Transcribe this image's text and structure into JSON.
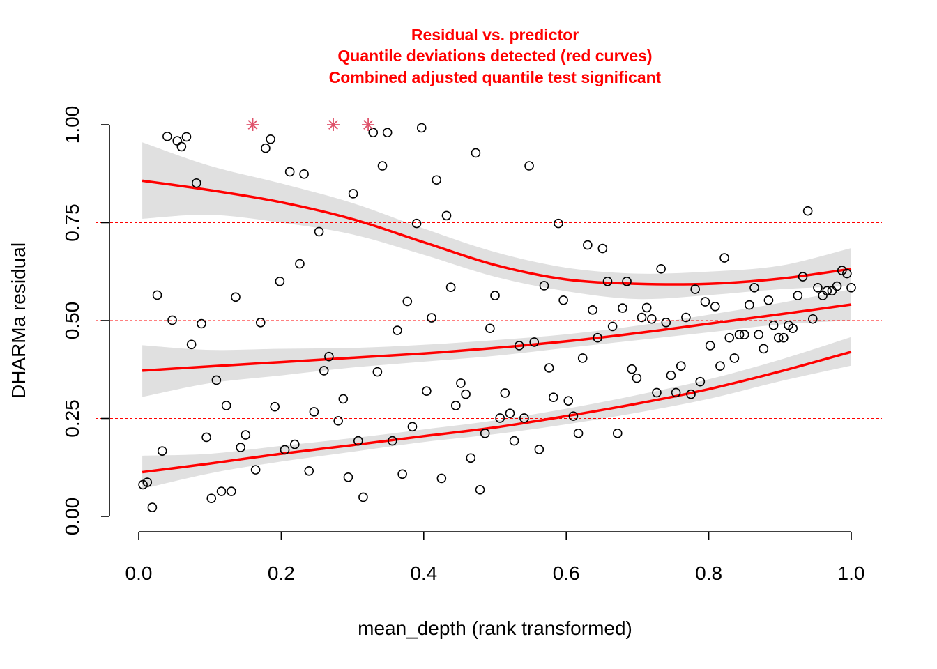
{
  "chart_data": {
    "type": "scatter",
    "title": [
      "Residual vs. predictor",
      "Quantile deviations detected (red curves)",
      "Combined adjusted quantile test significant"
    ],
    "xlabel": "mean_depth (rank transformed)",
    "ylabel": "DHARMa residual",
    "xlim": [
      0,
      1
    ],
    "ylim": [
      0,
      1
    ],
    "x_ticks": [
      0.0,
      0.2,
      0.4,
      0.6,
      0.8,
      1.0
    ],
    "x_tick_labels": [
      "0.0",
      "0.2",
      "0.4",
      "0.6",
      "0.8",
      "1.0"
    ],
    "y_ticks": [
      0.0,
      0.25,
      0.5,
      0.75,
      1.0
    ],
    "y_tick_labels": [
      "0.00",
      "0.25",
      "0.50",
      "0.75",
      "1.00"
    ],
    "reference_lines": [
      0.25,
      0.5,
      0.75
    ],
    "colors": {
      "title": "#ff0000",
      "quantile_curve": "#ff0000",
      "band": "#e0e0e0",
      "reference": "#ff0000",
      "outlier": "#df536b",
      "points": "#000000"
    },
    "quantile_curves": [
      {
        "quantile": 0.25,
        "x": [
          0.005,
          0.1,
          0.2,
          0.3,
          0.4,
          0.5,
          0.6,
          0.7,
          0.8,
          0.9,
          1.0
        ],
        "y": [
          0.113,
          0.135,
          0.16,
          0.182,
          0.205,
          0.227,
          0.256,
          0.288,
          0.325,
          0.37,
          0.42
        ],
        "band_lower": [
          0.07,
          0.11,
          0.14,
          0.165,
          0.19,
          0.21,
          0.235,
          0.265,
          0.3,
          0.345,
          0.385
        ],
        "band_upper": [
          0.155,
          0.16,
          0.18,
          0.2,
          0.222,
          0.245,
          0.275,
          0.31,
          0.35,
          0.4,
          0.458
        ]
      },
      {
        "quantile": 0.5,
        "x": [
          0.005,
          0.1,
          0.2,
          0.3,
          0.4,
          0.5,
          0.6,
          0.7,
          0.8,
          0.9,
          1.0
        ],
        "y": [
          0.372,
          0.383,
          0.394,
          0.405,
          0.416,
          0.43,
          0.447,
          0.468,
          0.492,
          0.516,
          0.541
        ],
        "band_lower": [
          0.305,
          0.34,
          0.36,
          0.38,
          0.395,
          0.41,
          0.43,
          0.45,
          0.47,
          0.49,
          0.5
        ],
        "band_upper": [
          0.437,
          0.425,
          0.428,
          0.43,
          0.438,
          0.45,
          0.465,
          0.487,
          0.515,
          0.545,
          0.58
        ]
      },
      {
        "quantile": 0.75,
        "x": [
          0.005,
          0.1,
          0.2,
          0.3,
          0.4,
          0.5,
          0.6,
          0.7,
          0.8,
          0.9,
          1.0
        ],
        "y": [
          0.857,
          0.833,
          0.802,
          0.759,
          0.7,
          0.642,
          0.605,
          0.594,
          0.594,
          0.607,
          0.632
        ],
        "band_lower": [
          0.76,
          0.77,
          0.75,
          0.72,
          0.668,
          0.612,
          0.575,
          0.555,
          0.565,
          0.58,
          0.588
        ],
        "band_upper": [
          0.955,
          0.895,
          0.85,
          0.8,
          0.735,
          0.675,
          0.635,
          0.62,
          0.625,
          0.64,
          0.685
        ]
      }
    ],
    "outliers": [
      {
        "x": 0.16,
        "y": 1.0
      },
      {
        "x": 0.273,
        "y": 1.0
      },
      {
        "x": 0.322,
        "y": 1.0
      }
    ],
    "points": [
      [
        0.006,
        0.081
      ],
      [
        0.012,
        0.087
      ],
      [
        0.019,
        0.023
      ],
      [
        0.026,
        0.565
      ],
      [
        0.033,
        0.167
      ],
      [
        0.04,
        0.97
      ],
      [
        0.047,
        0.501
      ],
      [
        0.054,
        0.959
      ],
      [
        0.06,
        0.944
      ],
      [
        0.067,
        0.969
      ],
      [
        0.074,
        0.439
      ],
      [
        0.081,
        0.851
      ],
      [
        0.088,
        0.492
      ],
      [
        0.095,
        0.202
      ],
      [
        0.102,
        0.046
      ],
      [
        0.109,
        0.348
      ],
      [
        0.116,
        0.064
      ],
      [
        0.123,
        0.283
      ],
      [
        0.13,
        0.064
      ],
      [
        0.136,
        0.56
      ],
      [
        0.143,
        0.176
      ],
      [
        0.15,
        0.208
      ],
      [
        0.164,
        0.119
      ],
      [
        0.171,
        0.495
      ],
      [
        0.178,
        0.94
      ],
      [
        0.185,
        0.963
      ],
      [
        0.191,
        0.28
      ],
      [
        0.198,
        0.6
      ],
      [
        0.205,
        0.17
      ],
      [
        0.212,
        0.88
      ],
      [
        0.219,
        0.184
      ],
      [
        0.226,
        0.645
      ],
      [
        0.232,
        0.874
      ],
      [
        0.239,
        0.116
      ],
      [
        0.246,
        0.267
      ],
      [
        0.253,
        0.727
      ],
      [
        0.26,
        0.372
      ],
      [
        0.267,
        0.408
      ],
      [
        0.28,
        0.244
      ],
      [
        0.287,
        0.3
      ],
      [
        0.294,
        0.1
      ],
      [
        0.301,
        0.824
      ],
      [
        0.308,
        0.193
      ],
      [
        0.315,
        0.049
      ],
      [
        0.329,
        0.98
      ],
      [
        0.335,
        0.369
      ],
      [
        0.342,
        0.895
      ],
      [
        0.349,
        0.98
      ],
      [
        0.356,
        0.193
      ],
      [
        0.363,
        0.475
      ],
      [
        0.37,
        0.108
      ],
      [
        0.377,
        0.549
      ],
      [
        0.384,
        0.229
      ],
      [
        0.39,
        0.748
      ],
      [
        0.397,
        0.992
      ],
      [
        0.404,
        0.32
      ],
      [
        0.411,
        0.507
      ],
      [
        0.418,
        0.859
      ],
      [
        0.425,
        0.097
      ],
      [
        0.432,
        0.768
      ],
      [
        0.438,
        0.585
      ],
      [
        0.445,
        0.283
      ],
      [
        0.452,
        0.34
      ],
      [
        0.459,
        0.312
      ],
      [
        0.466,
        0.149
      ],
      [
        0.473,
        0.928
      ],
      [
        0.479,
        0.068
      ],
      [
        0.486,
        0.212
      ],
      [
        0.493,
        0.48
      ],
      [
        0.5,
        0.564
      ],
      [
        0.507,
        0.251
      ],
      [
        0.514,
        0.315
      ],
      [
        0.521,
        0.263
      ],
      [
        0.527,
        0.193
      ],
      [
        0.534,
        0.436
      ],
      [
        0.541,
        0.251
      ],
      [
        0.548,
        0.895
      ],
      [
        0.555,
        0.445
      ],
      [
        0.562,
        0.171
      ],
      [
        0.569,
        0.589
      ],
      [
        0.576,
        0.379
      ],
      [
        0.582,
        0.304
      ],
      [
        0.589,
        0.748
      ],
      [
        0.596,
        0.552
      ],
      [
        0.603,
        0.295
      ],
      [
        0.61,
        0.256
      ],
      [
        0.617,
        0.212
      ],
      [
        0.623,
        0.404
      ],
      [
        0.63,
        0.693
      ],
      [
        0.637,
        0.527
      ],
      [
        0.644,
        0.456
      ],
      [
        0.651,
        0.684
      ],
      [
        0.658,
        0.6
      ],
      [
        0.665,
        0.485
      ],
      [
        0.672,
        0.212
      ],
      [
        0.679,
        0.532
      ],
      [
        0.685,
        0.6
      ],
      [
        0.692,
        0.376
      ],
      [
        0.699,
        0.353
      ],
      [
        0.706,
        0.508
      ],
      [
        0.713,
        0.533
      ],
      [
        0.72,
        0.504
      ],
      [
        0.727,
        0.316
      ],
      [
        0.733,
        0.632
      ],
      [
        0.74,
        0.495
      ],
      [
        0.747,
        0.36
      ],
      [
        0.754,
        0.316
      ],
      [
        0.761,
        0.384
      ],
      [
        0.768,
        0.508
      ],
      [
        0.775,
        0.312
      ],
      [
        0.781,
        0.58
      ],
      [
        0.788,
        0.344
      ],
      [
        0.795,
        0.548
      ],
      [
        0.802,
        0.436
      ],
      [
        0.809,
        0.536
      ],
      [
        0.816,
        0.384
      ],
      [
        0.822,
        0.66
      ],
      [
        0.829,
        0.456
      ],
      [
        0.836,
        0.404
      ],
      [
        0.843,
        0.464
      ],
      [
        0.85,
        0.464
      ],
      [
        0.857,
        0.54
      ],
      [
        0.864,
        0.584
      ],
      [
        0.87,
        0.464
      ],
      [
        0.877,
        0.428
      ],
      [
        0.884,
        0.552
      ],
      [
        0.891,
        0.488
      ],
      [
        0.898,
        0.456
      ],
      [
        0.905,
        0.456
      ],
      [
        0.912,
        0.488
      ],
      [
        0.918,
        0.48
      ],
      [
        0.925,
        0.564
      ],
      [
        0.932,
        0.612
      ],
      [
        0.939,
        0.78
      ],
      [
        0.946,
        0.504
      ],
      [
        0.953,
        0.584
      ],
      [
        0.96,
        0.564
      ],
      [
        0.966,
        0.576
      ],
      [
        0.973,
        0.576
      ],
      [
        0.98,
        0.588
      ],
      [
        0.987,
        0.628
      ],
      [
        0.994,
        0.62
      ],
      [
        1.0,
        0.584
      ]
    ]
  }
}
